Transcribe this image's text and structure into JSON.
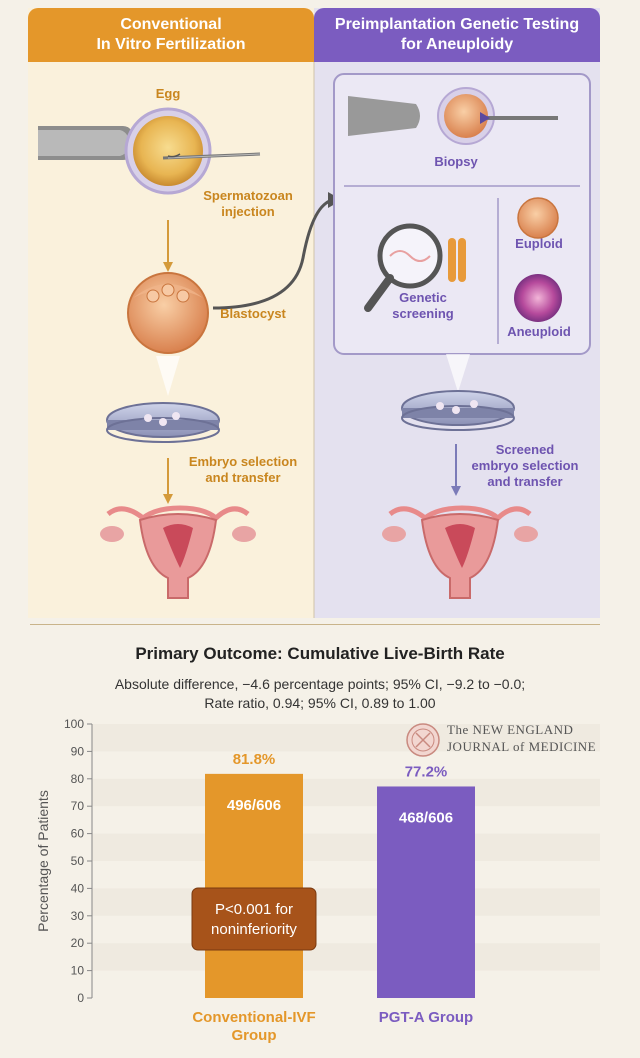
{
  "colors": {
    "conventional": "#e4972a",
    "pgta": "#7b5cc0",
    "pvalue_box": "#a7531a"
  },
  "left_panel": {
    "title": "Conventional\nIn Vitro Fertilization",
    "egg": "Egg",
    "spermatozoan": "Spermatozoan\ninjection",
    "blastocyst": "Blastocyst",
    "embryo_selection": "Embryo selection\nand transfer"
  },
  "right_panel": {
    "title": "Preimplantation Genetic Testing\nfor Aneuploidy",
    "biopsy": "Biopsy",
    "genetic_screening": "Genetic\nscreening",
    "euploid": "Euploid",
    "aneuploid": "Aneuploid",
    "screened_selection": "Screened\nembryo selection\nand transfer"
  },
  "journal": {
    "line1": "The NEW ENGLAND",
    "line2": "JOURNAL of MEDICINE"
  },
  "chart_data": {
    "type": "bar",
    "title": "Primary Outcome: Cumulative Live-Birth Rate",
    "subtitle_line1": "Absolute difference, −4.6 percentage points; 95% CI, −9.2 to −0.0;",
    "subtitle_line2": "Rate ratio, 0.94; 95% CI, 0.89 to 1.00",
    "ylabel": "Percentage of Patients",
    "ylim": [
      0,
      100
    ],
    "yticks": [
      0,
      10,
      20,
      30,
      40,
      50,
      60,
      70,
      80,
      90,
      100
    ],
    "grid": false,
    "categories": [
      "Conventional-IVF\nGroup",
      "PGT-A Group"
    ],
    "values": [
      81.8,
      77.2
    ],
    "value_labels": [
      "81.8%",
      "77.2%"
    ],
    "count_labels": [
      "496/606",
      "468/606"
    ],
    "annotation": "P<0.001 for\nnoninferiority"
  }
}
